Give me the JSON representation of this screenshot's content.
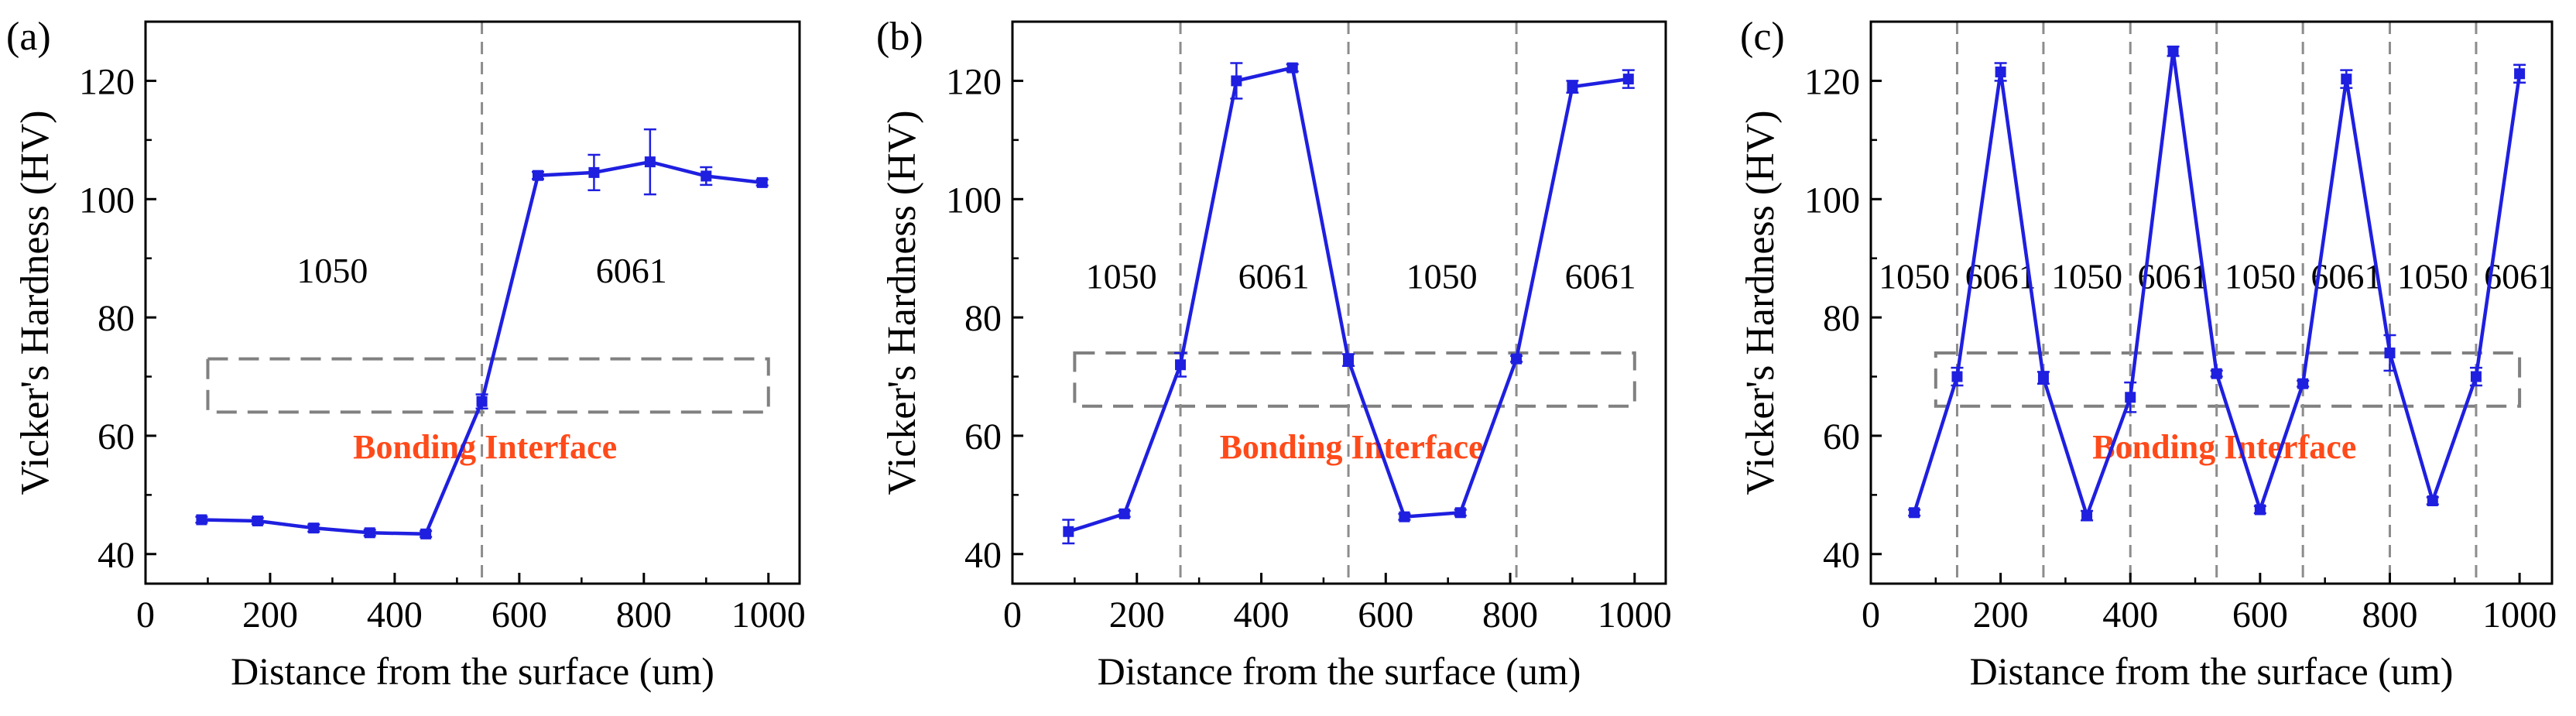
{
  "colors": {
    "series": "#1f1fe0",
    "interface_box": "#808080",
    "divider": "#8c8c8c",
    "bonding_label": "#ff4a1a",
    "axis": "#000000"
  },
  "chart_data": [
    {
      "type": "line",
      "panel_label": "(a)",
      "xlabel": "Distance from the surface (um)",
      "ylabel": "Vicker's Hardness (HV)",
      "xlim": [
        0,
        1050
      ],
      "ylim": [
        35,
        130
      ],
      "xticks": [
        0,
        200,
        400,
        600,
        800,
        1000
      ],
      "yticks": [
        40,
        60,
        80,
        100,
        120
      ],
      "x": [
        90,
        180,
        270,
        360,
        450,
        540,
        630,
        720,
        810,
        900,
        990
      ],
      "y": [
        45.8,
        45.6,
        44.4,
        43.6,
        43.4,
        65.8,
        104.0,
        104.5,
        106.3,
        103.9,
        102.8
      ],
      "yerr": [
        0.5,
        0.5,
        0.6,
        0.5,
        0.5,
        1.2,
        0.6,
        3.0,
        5.5,
        1.5,
        0.5
      ],
      "dividers": [
        540
      ],
      "interface_box": {
        "x": [
          100,
          1000
        ],
        "y": [
          64,
          73
        ]
      },
      "annotations": [
        {
          "text": "1050",
          "x": 300,
          "y": 88
        },
        {
          "text": "6061",
          "x": 780,
          "y": 88
        },
        {
          "text": "Bonding Interface",
          "x": 545,
          "y": 58
        }
      ]
    },
    {
      "type": "line",
      "panel_label": "(b)",
      "xlabel": "Distance from the surface (um)",
      "ylabel": "Vicker's Hardness (HV)",
      "xlim": [
        0,
        1050
      ],
      "ylim": [
        35,
        130
      ],
      "xticks": [
        0,
        200,
        400,
        600,
        800,
        1000
      ],
      "yticks": [
        40,
        60,
        80,
        100,
        120
      ],
      "x": [
        90,
        180,
        270,
        360,
        450,
        540,
        630,
        720,
        810,
        900,
        990
      ],
      "y": [
        43.8,
        46.8,
        72.0,
        120.0,
        122.2,
        72.8,
        46.3,
        47.0,
        73.0,
        119.0,
        120.3
      ],
      "yerr": [
        2.0,
        0.5,
        2.0,
        3.0,
        0.6,
        1.0,
        0.5,
        0.5,
        0.5,
        1.0,
        1.5
      ],
      "dividers": [
        270,
        540,
        810
      ],
      "interface_box": {
        "x": [
          100,
          1000
        ],
        "y": [
          65,
          74
        ]
      },
      "annotations": [
        {
          "text": "1050",
          "x": 175,
          "y": 87
        },
        {
          "text": "6061",
          "x": 420,
          "y": 87
        },
        {
          "text": "1050",
          "x": 690,
          "y": 87
        },
        {
          "text": "6061",
          "x": 945,
          "y": 87
        },
        {
          "text": "Bonding Interface",
          "x": 545,
          "y": 58
        }
      ]
    },
    {
      "type": "line",
      "panel_label": "(c)",
      "xlabel": "Distance from the surface (um)",
      "ylabel": "Vicker's Hardness (HV)",
      "xlim": [
        0,
        1050
      ],
      "ylim": [
        35,
        130
      ],
      "xticks": [
        0,
        200,
        400,
        600,
        800,
        1000
      ],
      "yticks": [
        40,
        60,
        80,
        100,
        120
      ],
      "x": [
        67,
        133,
        200,
        266,
        333,
        400,
        466,
        533,
        600,
        666,
        733,
        800,
        866,
        933,
        1000
      ],
      "y": [
        47.0,
        70.0,
        121.5,
        69.8,
        46.5,
        66.5,
        125.0,
        70.5,
        47.5,
        68.8,
        120.3,
        74.0,
        49.0,
        70.0,
        121.2
      ],
      "yerr": [
        0.5,
        1.5,
        1.5,
        1.0,
        0.8,
        2.5,
        0.8,
        0.5,
        0.6,
        0.5,
        1.5,
        3.0,
        0.6,
        1.5,
        1.5
      ],
      "dividers": [
        133,
        266,
        400,
        533,
        666,
        800,
        933
      ],
      "interface_box": {
        "x": [
          100,
          1000
        ],
        "y": [
          65,
          74
        ]
      },
      "annotations": [
        {
          "text": "1050",
          "x": 67,
          "y": 87
        },
        {
          "text": "6061",
          "x": 200,
          "y": 87
        },
        {
          "text": "1050",
          "x": 333,
          "y": 87
        },
        {
          "text": "6061",
          "x": 466,
          "y": 87
        },
        {
          "text": "1050",
          "x": 600,
          "y": 87
        },
        {
          "text": "6061",
          "x": 733,
          "y": 87
        },
        {
          "text": "1050",
          "x": 866,
          "y": 87
        },
        {
          "text": "6061",
          "x": 1000,
          "y": 87
        },
        {
          "text": "Bonding Interface",
          "x": 545,
          "y": 58
        }
      ]
    }
  ]
}
